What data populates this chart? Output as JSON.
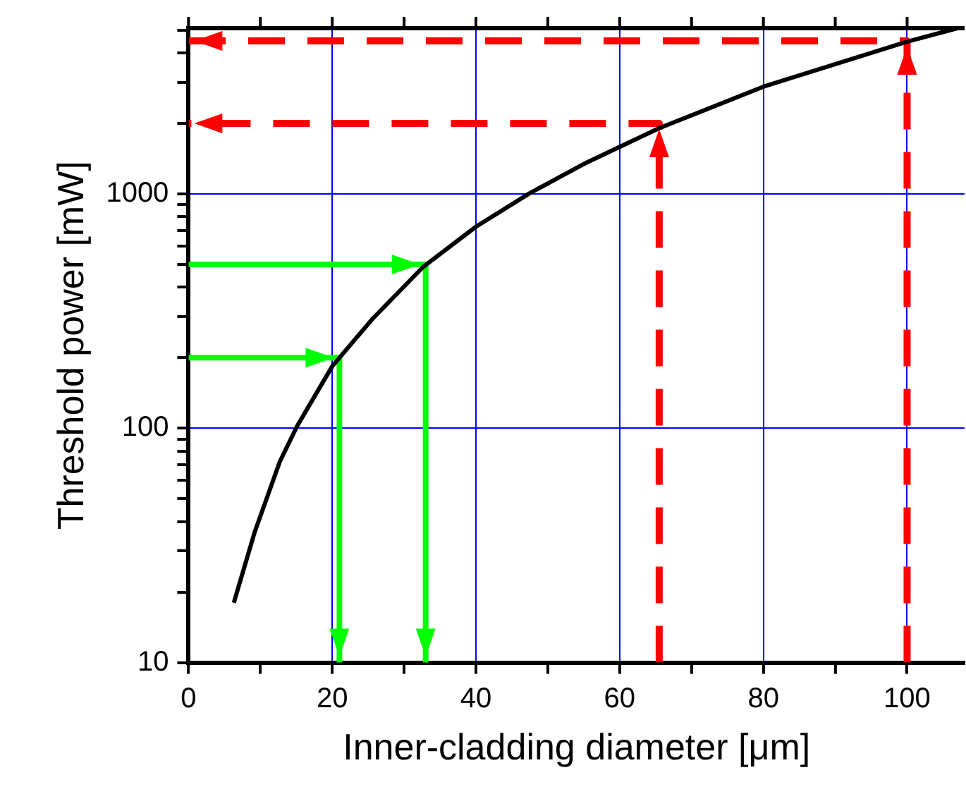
{
  "chart_data": {
    "type": "line",
    "xlabel": "Inner-cladding diameter [μm]",
    "ylabel": "Threshold power [mW]",
    "xlim": [
      0,
      108
    ],
    "xticks": [
      0,
      {
        "value": 10,
        "label": null
      },
      20,
      {
        "value": 30,
        "label": null
      },
      40,
      {
        "value": 50,
        "label": null
      },
      60,
      {
        "value": 70,
        "label": null
      },
      80,
      {
        "value": 90,
        "label": null
      },
      100
    ],
    "ylim": [
      10,
      5100
    ],
    "log": true,
    "yticks": [
      10,
      {
        "value": 20,
        "label": null
      },
      {
        "value": 30,
        "label": null
      },
      {
        "value": 40,
        "label": null
      },
      {
        "value": 50,
        "label": null
      },
      {
        "value": 60,
        "label": null
      },
      {
        "value": 70,
        "label": null
      },
      {
        "value": 80,
        "label": null
      },
      {
        "value": 90,
        "label": null
      },
      100,
      {
        "value": 200,
        "label": null
      },
      {
        "value": 300,
        "label": null
      },
      {
        "value": 400,
        "label": null
      },
      {
        "value": 500,
        "label": null
      },
      {
        "value": 600,
        "label": null
      },
      {
        "value": 700,
        "label": null
      },
      {
        "value": 800,
        "label": null
      },
      {
        "value": 900,
        "label": null
      },
      1000,
      {
        "value": 2000,
        "label": null
      },
      {
        "value": 3000,
        "label": null
      },
      {
        "value": 4000,
        "label": null
      },
      {
        "value": 5000,
        "label": null
      }
    ],
    "grid": true,
    "legend": false,
    "marker": "none",
    "series": [
      {
        "color": "#000000",
        "x": [
          6.3,
          9.2,
          12.7,
          15.1,
          20,
          25.6,
          32.7,
          40,
          47.3,
          55,
          65.5,
          80,
          100,
          107
        ],
        "values": [
          18,
          36,
          72,
          102,
          184,
          293,
          490,
          725,
          1000,
          1343,
          1910,
          2870,
          4470,
          5100
        ]
      },
      {
        "color": "#00ff00",
        "line_style": "solid",
        "x": [
          0,
          21,
          21
        ],
        "values": [
          200,
          200,
          10
        ]
      },
      {
        "color": "#00ff00",
        "line_style": "solid",
        "x": [
          0,
          33,
          33
        ],
        "values": [
          500,
          500,
          10
        ]
      },
      {
        "color": "#ff0000",
        "line_style": "dashed",
        "x": [
          65.5,
          65.5,
          0
        ],
        "values": [
          10,
          2000,
          2000
        ]
      },
      {
        "color": "#ff0000",
        "line_style": "dashed",
        "x": [
          100,
          100,
          0
        ],
        "values": [
          10,
          4500,
          4500
        ]
      }
    ]
  }
}
